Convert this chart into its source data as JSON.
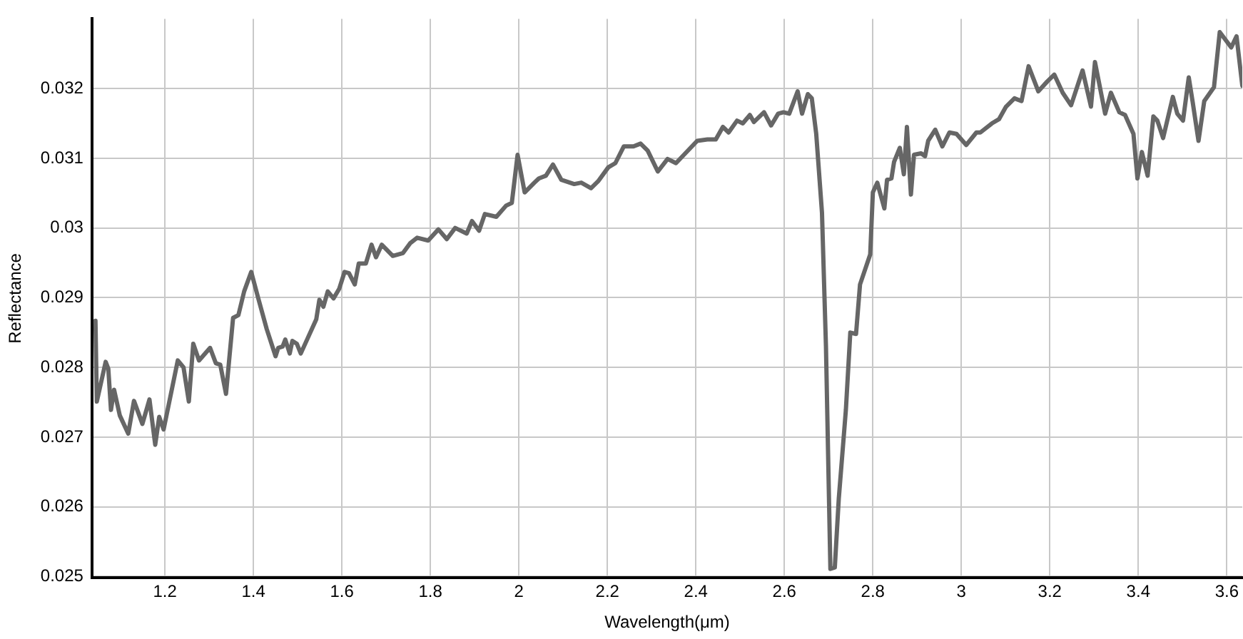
{
  "chart_data": {
    "type": "line",
    "xlabel": "Wavelength(μm)",
    "ylabel": "Reflectance",
    "xlim": [
      1.035,
      3.635
    ],
    "ylim": [
      0.02498,
      0.033
    ],
    "xticks": [
      1.2,
      1.4,
      1.6,
      1.8,
      2,
      2.2,
      2.4,
      2.6,
      2.8,
      3,
      3.2,
      3.4,
      3.6
    ],
    "yticks": [
      0.025,
      0.026,
      0.027,
      0.028,
      0.029,
      0.03,
      0.031,
      0.032
    ],
    "grid": true,
    "legend": false,
    "marker": "none",
    "line_style": "solid",
    "series": [
      {
        "color": "#666666",
        "x": [
          1.043,
          1.046,
          1.066,
          1.072,
          1.078,
          1.085,
          1.098,
          1.117,
          1.13,
          1.149,
          1.165,
          1.178,
          1.187,
          1.197,
          1.229,
          1.242,
          1.254,
          1.264,
          1.277,
          1.302,
          1.315,
          1.325,
          1.338,
          1.354,
          1.366,
          1.379,
          1.395,
          1.411,
          1.43,
          1.45,
          1.456,
          1.466,
          1.472,
          1.482,
          1.488,
          1.498,
          1.507,
          1.542,
          1.549,
          1.558,
          1.568,
          1.581,
          1.594,
          1.606,
          1.616,
          1.629,
          1.638,
          1.654,
          1.667,
          1.677,
          1.69,
          1.715,
          1.738,
          1.754,
          1.77,
          1.795,
          1.818,
          1.837,
          1.856,
          1.882,
          1.894,
          1.91,
          1.923,
          1.949,
          1.971,
          1.984,
          1.997,
          2.013,
          2.035,
          2.045,
          2.061,
          2.077,
          2.096,
          2.125,
          2.141,
          2.163,
          2.179,
          2.202,
          2.218,
          2.237,
          2.259,
          2.275,
          2.291,
          2.314,
          2.336,
          2.355,
          2.403,
          2.426,
          2.445,
          2.461,
          2.474,
          2.493,
          2.506,
          2.522,
          2.531,
          2.554,
          2.57,
          2.586,
          2.598,
          2.611,
          2.63,
          2.64,
          2.653,
          2.662,
          2.672,
          2.685,
          2.694,
          2.704,
          2.714,
          2.723,
          2.739,
          2.749,
          2.762,
          2.771,
          2.794,
          2.8,
          2.81,
          2.826,
          2.832,
          2.842,
          2.848,
          2.861,
          2.87,
          2.877,
          2.886,
          2.893,
          2.909,
          2.918,
          2.925,
          2.941,
          2.957,
          2.973,
          2.989,
          3.011,
          3.034,
          3.043,
          3.069,
          3.085,
          3.101,
          3.12,
          3.136,
          3.152,
          3.174,
          3.194,
          3.21,
          3.229,
          3.248,
          3.274,
          3.293,
          3.302,
          3.325,
          3.338,
          3.357,
          3.37,
          3.389,
          3.398,
          3.408,
          3.421,
          3.434,
          3.443,
          3.456,
          3.478,
          3.488,
          3.501,
          3.514,
          3.523,
          3.536,
          3.549,
          3.571,
          3.584,
          3.61,
          3.622,
          3.635
        ],
        "values": [
          0.02867,
          0.02751,
          0.02808,
          0.02798,
          0.02739,
          0.02768,
          0.02731,
          0.02705,
          0.02752,
          0.02719,
          0.02754,
          0.02689,
          0.02729,
          0.02711,
          0.0281,
          0.028,
          0.02751,
          0.02834,
          0.0281,
          0.02828,
          0.02806,
          0.02804,
          0.02762,
          0.02871,
          0.02875,
          0.02909,
          0.02937,
          0.02899,
          0.02855,
          0.02816,
          0.02828,
          0.0283,
          0.0284,
          0.0282,
          0.02838,
          0.02834,
          0.0282,
          0.02869,
          0.02897,
          0.02887,
          0.02909,
          0.02899,
          0.02913,
          0.02937,
          0.02935,
          0.02919,
          0.02949,
          0.02949,
          0.02976,
          0.02958,
          0.02976,
          0.0296,
          0.02964,
          0.02978,
          0.02986,
          0.02982,
          0.02998,
          0.02984,
          0.03,
          0.02992,
          0.0301,
          0.02996,
          0.0302,
          0.03016,
          0.03032,
          0.03036,
          0.03105,
          0.03051,
          0.03065,
          0.03071,
          0.03075,
          0.03091,
          0.03069,
          0.03063,
          0.03065,
          0.03057,
          0.03067,
          0.03087,
          0.03093,
          0.03117,
          0.03117,
          0.03121,
          0.03111,
          0.03081,
          0.03099,
          0.03093,
          0.03125,
          0.03127,
          0.03127,
          0.03145,
          0.03137,
          0.03154,
          0.0315,
          0.03162,
          0.03152,
          0.03166,
          0.03147,
          0.03164,
          0.03166,
          0.03164,
          0.03196,
          0.03164,
          0.03192,
          0.03186,
          0.03135,
          0.03022,
          0.0283,
          0.02511,
          0.02513,
          0.02612,
          0.02739,
          0.0285,
          0.02848,
          0.02919,
          0.02962,
          0.03051,
          0.03065,
          0.03028,
          0.03069,
          0.03071,
          0.03095,
          0.03115,
          0.03077,
          0.03145,
          0.03048,
          0.03105,
          0.03107,
          0.03103,
          0.03125,
          0.03141,
          0.03117,
          0.03137,
          0.03135,
          0.03119,
          0.03137,
          0.03137,
          0.0315,
          0.03156,
          0.03174,
          0.03186,
          0.03182,
          0.03232,
          0.03196,
          0.0321,
          0.0322,
          0.03194,
          0.03176,
          0.03226,
          0.03174,
          0.03238,
          0.03164,
          0.03194,
          0.03166,
          0.03162,
          0.03135,
          0.03071,
          0.03109,
          0.03075,
          0.0316,
          0.03154,
          0.03129,
          0.03188,
          0.03164,
          0.03154,
          0.03216,
          0.0318,
          0.03125,
          0.03182,
          0.03202,
          0.03281,
          0.03259,
          0.03275,
          0.03204
        ]
      }
    ]
  }
}
